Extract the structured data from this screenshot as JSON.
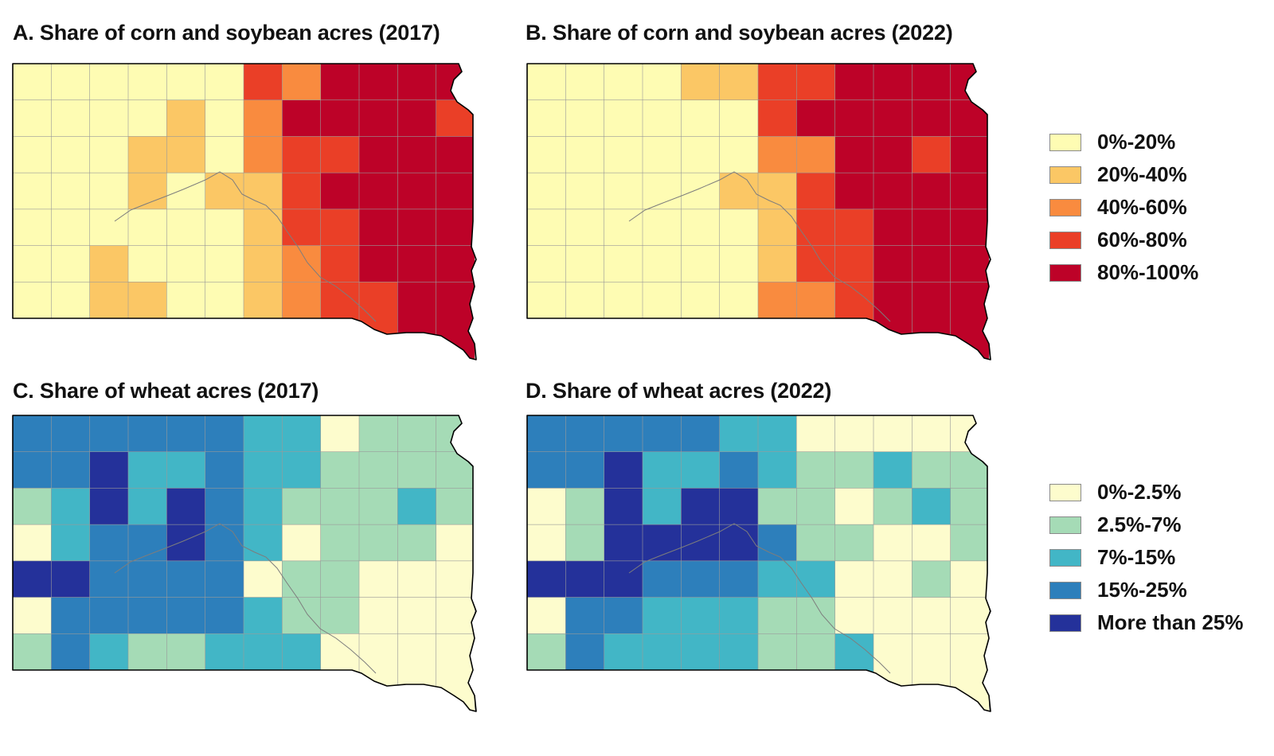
{
  "panels": [
    {
      "id": "A",
      "title": "A. Share of corn and soybean acres (2017)",
      "scale": "corn"
    },
    {
      "id": "B",
      "title": "B. Share of corn and soybean acres (2022)",
      "scale": "corn"
    },
    {
      "id": "C",
      "title": "C. Share of wheat acres (2017)",
      "scale": "wheat"
    },
    {
      "id": "D",
      "title": "D. Share of wheat acres (2022)",
      "scale": "wheat"
    }
  ],
  "legends": {
    "corn": [
      {
        "label": "0%-20%",
        "color": "#fefcb3"
      },
      {
        "label": "20%-40%",
        "color": "#fbc765"
      },
      {
        "label": "40%-60%",
        "color": "#f98b3f"
      },
      {
        "label": "60%-80%",
        "color": "#ea3f27"
      },
      {
        "label": "80%-100%",
        "color": "#bd0228"
      }
    ],
    "wheat": [
      {
        "label": "0%-2.5%",
        "color": "#fdfccd"
      },
      {
        "label": "2.5%-7%",
        "color": "#a5dbb6"
      },
      {
        "label": "7%-15%",
        "color": "#42b6c6"
      },
      {
        "label": "15%-25%",
        "color": "#2d7fbb"
      },
      {
        "label": "More than 25%",
        "color": "#24319a"
      }
    ]
  },
  "map_shading_levels": {
    "A": [
      [
        0,
        0,
        0,
        0,
        0,
        0,
        3,
        2,
        4,
        4,
        4,
        4
      ],
      [
        0,
        0,
        0,
        0,
        1,
        0,
        2,
        4,
        4,
        4,
        4,
        3
      ],
      [
        0,
        0,
        0,
        1,
        1,
        0,
        2,
        3,
        3,
        4,
        4,
        4
      ],
      [
        0,
        0,
        0,
        1,
        0,
        1,
        1,
        3,
        4,
        4,
        4,
        4
      ],
      [
        0,
        0,
        0,
        0,
        0,
        0,
        1,
        3,
        3,
        4,
        4,
        4
      ],
      [
        0,
        0,
        1,
        0,
        0,
        0,
        1,
        2,
        3,
        4,
        4,
        4
      ],
      [
        0,
        0,
        1,
        1,
        0,
        0,
        1,
        2,
        3,
        3,
        4,
        4
      ]
    ],
    "B": [
      [
        0,
        0,
        0,
        0,
        1,
        1,
        3,
        3,
        4,
        4,
        4,
        4
      ],
      [
        0,
        0,
        0,
        0,
        0,
        0,
        3,
        4,
        4,
        4,
        4,
        4
      ],
      [
        0,
        0,
        0,
        0,
        0,
        0,
        2,
        2,
        4,
        4,
        3,
        4
      ],
      [
        0,
        0,
        0,
        0,
        0,
        1,
        1,
        3,
        4,
        4,
        4,
        4
      ],
      [
        0,
        0,
        0,
        0,
        0,
        0,
        1,
        3,
        3,
        4,
        4,
        4
      ],
      [
        0,
        0,
        0,
        0,
        0,
        0,
        1,
        3,
        3,
        4,
        4,
        4
      ],
      [
        0,
        0,
        0,
        0,
        0,
        0,
        2,
        2,
        3,
        4,
        4,
        4
      ]
    ],
    "C": [
      [
        3,
        3,
        3,
        3,
        3,
        3,
        2,
        2,
        0,
        1,
        1,
        1
      ],
      [
        3,
        3,
        4,
        2,
        2,
        3,
        2,
        2,
        1,
        1,
        1,
        1
      ],
      [
        1,
        2,
        4,
        2,
        4,
        3,
        2,
        1,
        1,
        1,
        2,
        1
      ],
      [
        0,
        2,
        3,
        3,
        4,
        3,
        2,
        0,
        1,
        1,
        1,
        0
      ],
      [
        4,
        4,
        3,
        3,
        3,
        3,
        0,
        1,
        1,
        0,
        0,
        0
      ],
      [
        0,
        3,
        3,
        3,
        3,
        3,
        2,
        1,
        1,
        0,
        0,
        0
      ],
      [
        1,
        3,
        2,
        1,
        1,
        2,
        2,
        2,
        0,
        0,
        0,
        0
      ]
    ],
    "D": [
      [
        3,
        3,
        3,
        3,
        3,
        2,
        2,
        0,
        0,
        0,
        0,
        0
      ],
      [
        3,
        3,
        4,
        2,
        2,
        3,
        2,
        1,
        1,
        2,
        1,
        1
      ],
      [
        0,
        1,
        4,
        2,
        4,
        4,
        1,
        1,
        0,
        1,
        2,
        1
      ],
      [
        0,
        1,
        4,
        4,
        4,
        4,
        3,
        1,
        1,
        0,
        0,
        1
      ],
      [
        4,
        4,
        4,
        3,
        3,
        3,
        2,
        2,
        0,
        0,
        1,
        0
      ],
      [
        0,
        3,
        3,
        2,
        2,
        2,
        1,
        1,
        0,
        0,
        0,
        0
      ],
      [
        1,
        3,
        2,
        2,
        2,
        2,
        1,
        1,
        2,
        0,
        0,
        0
      ]
    ]
  }
}
